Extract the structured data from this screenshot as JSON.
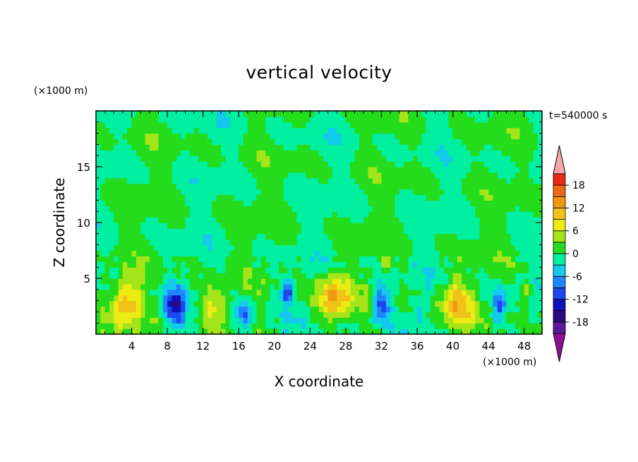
{
  "chart_data": {
    "type": "heatmap",
    "title": "vertical velocity",
    "xlabel": "X coordinate",
    "ylabel": "Z coordinate",
    "x_scale_note": "(×1000 m)",
    "y_scale_note": "(×1000 m)",
    "time_label": "t=540000 s",
    "xlim": [
      0,
      50
    ],
    "ylim": [
      0,
      20
    ],
    "x_ticks": [
      4,
      8,
      12,
      16,
      20,
      24,
      28,
      32,
      36,
      40,
      44,
      48
    ],
    "y_ticks": [
      5,
      10,
      15
    ],
    "colorbar": {
      "levels": [
        -21,
        -18,
        -15,
        -12,
        -9,
        -6,
        -3,
        0,
        3,
        6,
        9,
        12,
        15,
        18,
        21
      ],
      "tick_labels": [
        "18",
        "12",
        "6",
        "0",
        "-6",
        "-12",
        "-18"
      ],
      "tick_values": [
        18,
        12,
        6,
        0,
        -6,
        -12,
        -18
      ],
      "colors": [
        "#5b1a9a",
        "#2a0c82",
        "#1010b8",
        "#1d46ee",
        "#2184ff",
        "#14c8ee",
        "#00efa0",
        "#24dc1c",
        "#a6e41a",
        "#ecec14",
        "#f2c21a",
        "#f29712",
        "#ec6a14",
        "#e82a16"
      ],
      "under_color": "#8c0f96",
      "over_color": "#f4a8a8"
    },
    "cells_grid": {
      "x_range_km": [
        0,
        50
      ],
      "z_range_km": [
        0,
        20
      ],
      "nx": 100,
      "nz": 40
    },
    "features": [
      {
        "x": 3.5,
        "z": 2.8,
        "amp": 12,
        "wx": 1.6,
        "wz": 1.9
      },
      {
        "x": 8.8,
        "z": 2.5,
        "amp": -13,
        "wx": 1.1,
        "wz": 1.7
      },
      {
        "x": 13.2,
        "z": 2.5,
        "amp": 8,
        "wx": 1.5,
        "wz": 1.7
      },
      {
        "x": 16.6,
        "z": 1.9,
        "amp": -10,
        "wx": 0.8,
        "wz": 1.3
      },
      {
        "x": 21.5,
        "z": 3.8,
        "amp": -11,
        "wx": 0.7,
        "wz": 0.9
      },
      {
        "x": 26.6,
        "z": 3.3,
        "amp": 13,
        "wx": 1.8,
        "wz": 2.0
      },
      {
        "x": 32.0,
        "z": 2.7,
        "amp": -12,
        "wx": 0.9,
        "wz": 1.6
      },
      {
        "x": 36.2,
        "z": 2.0,
        "amp": -6,
        "wx": 0.7,
        "wz": 1.1
      },
      {
        "x": 40.3,
        "z": 2.7,
        "amp": 11,
        "wx": 1.8,
        "wz": 1.9
      },
      {
        "x": 45.3,
        "z": 2.6,
        "amp": -10,
        "wx": 0.8,
        "wz": 1.4
      },
      {
        "x": 48.5,
        "z": 3.8,
        "amp": 5,
        "wx": 0.8,
        "wz": 0.9
      },
      {
        "x": 32.3,
        "z": 6.3,
        "amp": 6,
        "wx": 0.5,
        "wz": 0.7
      }
    ]
  }
}
